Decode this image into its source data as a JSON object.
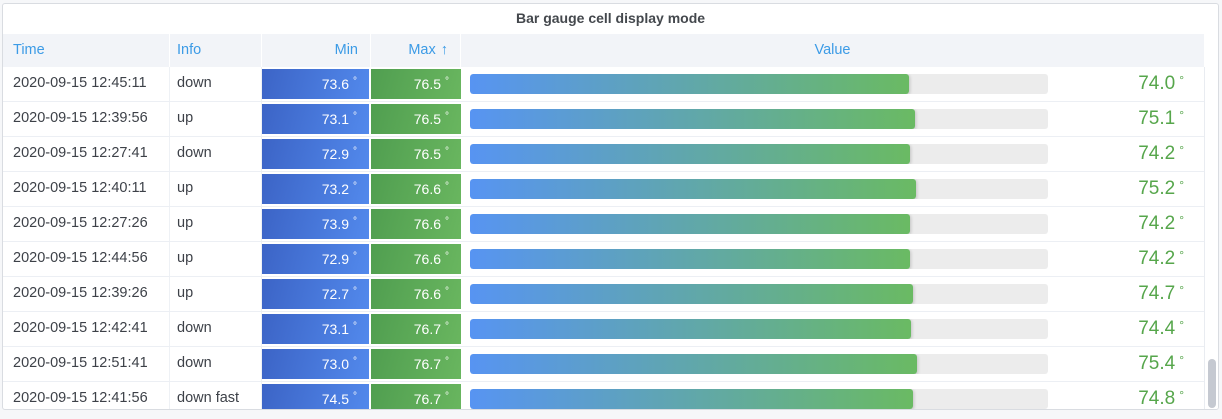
{
  "panel": {
    "title": "Bar gauge cell display mode"
  },
  "table": {
    "unit": "°",
    "columns": [
      {
        "label": "Time"
      },
      {
        "label": "Info"
      },
      {
        "label": "Min"
      },
      {
        "label": "Max",
        "sort_indicator": "↑"
      },
      {
        "label": "Value"
      }
    ],
    "rows": [
      {
        "time": "2020-09-15 12:45:11",
        "info": "down",
        "min": "73.6",
        "max": "76.5",
        "value": "74.0"
      },
      {
        "time": "2020-09-15 12:39:56",
        "info": "up",
        "min": "73.1",
        "max": "76.5",
        "value": "75.1"
      },
      {
        "time": "2020-09-15 12:27:41",
        "info": "down",
        "min": "72.9",
        "max": "76.5",
        "value": "74.2"
      },
      {
        "time": "2020-09-15 12:40:11",
        "info": "up",
        "min": "73.2",
        "max": "76.6",
        "value": "75.2"
      },
      {
        "time": "2020-09-15 12:27:26",
        "info": "up",
        "min": "73.9",
        "max": "76.6",
        "value": "74.2"
      },
      {
        "time": "2020-09-15 12:44:56",
        "info": "up",
        "min": "72.9",
        "max": "76.6",
        "value": "74.2"
      },
      {
        "time": "2020-09-15 12:39:26",
        "info": "up",
        "min": "72.7",
        "max": "76.6",
        "value": "74.7"
      },
      {
        "time": "2020-09-15 12:42:41",
        "info": "down",
        "min": "73.1",
        "max": "76.7",
        "value": "74.4"
      },
      {
        "time": "2020-09-15 12:51:41",
        "info": "down",
        "min": "73.0",
        "max": "76.7",
        "value": "75.4"
      },
      {
        "time": "2020-09-15 12:41:56",
        "info": "down fast",
        "min": "74.5",
        "max": "76.7",
        "value": "74.8"
      }
    ]
  },
  "colors": {
    "header_text": "#3c9be6",
    "value_text": "#56a64b",
    "bar_gradient_start": "#5794f2",
    "bar_gradient_end": "#6aba63",
    "min_cell_blue": "#4a7de0",
    "max_cell_green": "#5dae55",
    "track_gray": "#ececec"
  }
}
